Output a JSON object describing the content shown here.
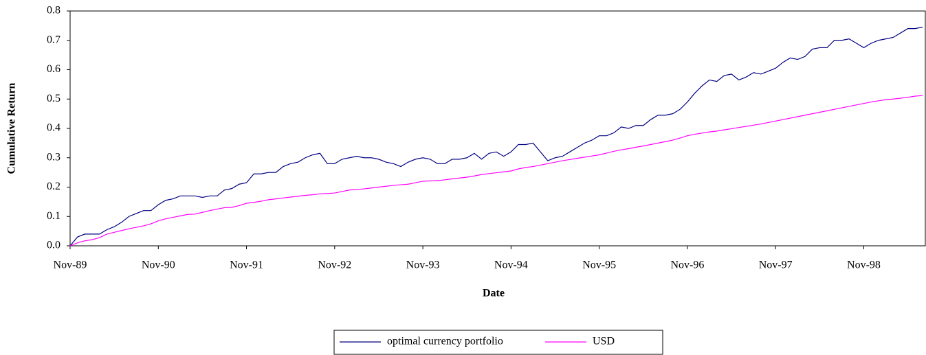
{
  "chart_data": {
    "type": "line",
    "x_label": "Date",
    "y_label": "Cumulative Return",
    "categories": [
      "Nov-89",
      null,
      null,
      null,
      null,
      null,
      null,
      null,
      null,
      null,
      null,
      null,
      "Nov-90",
      null,
      null,
      null,
      null,
      null,
      null,
      null,
      null,
      null,
      null,
      null,
      "Nov-91",
      null,
      null,
      null,
      null,
      null,
      null,
      null,
      null,
      null,
      null,
      null,
      "Nov-92",
      null,
      null,
      null,
      null,
      null,
      null,
      null,
      null,
      null,
      null,
      null,
      "Nov-93",
      null,
      null,
      null,
      null,
      null,
      null,
      null,
      null,
      null,
      null,
      null,
      "Nov-94",
      null,
      null,
      null,
      null,
      null,
      null,
      null,
      null,
      null,
      null,
      null,
      "Nov-95",
      null,
      null,
      null,
      null,
      null,
      null,
      null,
      null,
      null,
      null,
      null,
      "Nov-96",
      null,
      null,
      null,
      null,
      null,
      null,
      null,
      null,
      null,
      null,
      null,
      "Nov-97",
      null,
      null,
      null,
      null,
      null,
      null,
      null,
      null,
      null,
      null,
      null,
      "Nov-98",
      null,
      null,
      null,
      null,
      null,
      null,
      null,
      null
    ],
    "series": [
      {
        "name": "optimal currency portfolio",
        "color": "#000080",
        "values": [
          0,
          0.03,
          0.04,
          0.04,
          0.04,
          0.055,
          0.065,
          0.08,
          0.1,
          0.11,
          0.12,
          0.12,
          0.14,
          0.155,
          0.16,
          0.17,
          0.17,
          0.17,
          0.165,
          0.17,
          0.17,
          0.19,
          0.195,
          0.21,
          0.215,
          0.245,
          0.245,
          0.25,
          0.25,
          0.27,
          0.28,
          0.285,
          0.3,
          0.31,
          0.315,
          0.28,
          0.28,
          0.295,
          0.3,
          0.305,
          0.3,
          0.3,
          0.295,
          0.285,
          0.28,
          0.27,
          0.285,
          0.295,
          0.3,
          0.295,
          0.28,
          0.28,
          0.295,
          0.295,
          0.3,
          0.315,
          0.295,
          0.315,
          0.32,
          0.305,
          0.32,
          0.345,
          0.345,
          0.35,
          0.32,
          0.29,
          0.3,
          0.305,
          0.32,
          0.335,
          0.35,
          0.36,
          0.375,
          0.375,
          0.385,
          0.405,
          0.4,
          0.41,
          0.41,
          0.43,
          0.445,
          0.445,
          0.45,
          0.465,
          0.49,
          0.52,
          0.545,
          0.565,
          0.56,
          0.58,
          0.585,
          0.565,
          0.575,
          0.59,
          0.585,
          0.595,
          0.605,
          0.625,
          0.64,
          0.635,
          0.645,
          0.67,
          0.675,
          0.675,
          0.7,
          0.7,
          0.705,
          0.69,
          0.675,
          0.69,
          0.7,
          0.705,
          0.71,
          0.725,
          0.74,
          0.74,
          0.745
        ]
      },
      {
        "name": "USD",
        "color": "#ff00ff",
        "values": [
          0,
          0.01,
          0.017,
          0.021,
          0.028,
          0.04,
          0.046,
          0.052,
          0.058,
          0.063,
          0.068,
          0.075,
          0.085,
          0.092,
          0.097,
          0.102,
          0.107,
          0.108,
          0.114,
          0.12,
          0.125,
          0.13,
          0.131,
          0.137,
          0.145,
          0.148,
          0.152,
          0.157,
          0.16,
          0.163,
          0.166,
          0.169,
          0.172,
          0.174,
          0.177,
          0.178,
          0.18,
          0.185,
          0.19,
          0.192,
          0.194,
          0.197,
          0.2,
          0.203,
          0.206,
          0.208,
          0.21,
          0.215,
          0.22,
          0.221,
          0.222,
          0.225,
          0.228,
          0.231,
          0.234,
          0.238,
          0.243,
          0.246,
          0.249,
          0.252,
          0.255,
          0.262,
          0.267,
          0.27,
          0.275,
          0.28,
          0.285,
          0.29,
          0.294,
          0.298,
          0.302,
          0.306,
          0.31,
          0.316,
          0.322,
          0.327,
          0.331,
          0.336,
          0.34,
          0.345,
          0.35,
          0.355,
          0.36,
          0.367,
          0.375,
          0.38,
          0.384,
          0.388,
          0.391,
          0.395,
          0.399,
          0.403,
          0.407,
          0.411,
          0.415,
          0.42,
          0.425,
          0.43,
          0.435,
          0.44,
          0.445,
          0.45,
          0.455,
          0.46,
          0.465,
          0.47,
          0.475,
          0.48,
          0.485,
          0.49,
          0.494,
          0.498,
          0.5,
          0.503,
          0.506,
          0.51,
          0.512
        ]
      }
    ],
    "ylim": [
      0,
      0.8
    ],
    "yticks": [
      {
        "value": 0,
        "label": "0.0"
      },
      0.1,
      0.2,
      0.3,
      0.4,
      0.5,
      0.6,
      0.7,
      0.8
    ],
    "grid": false,
    "legend": "bottom"
  }
}
